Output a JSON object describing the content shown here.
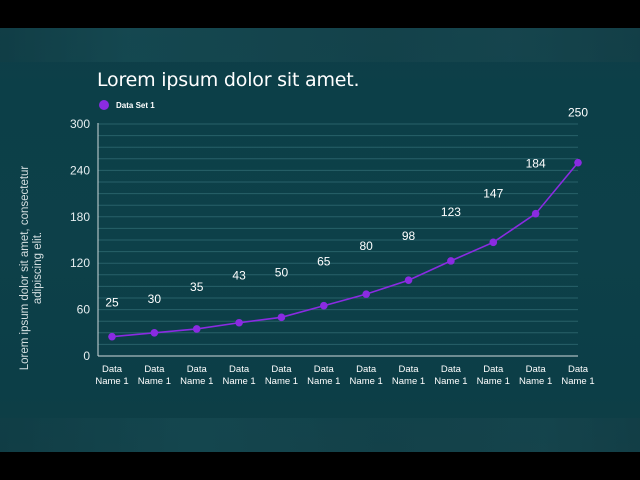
{
  "chart_data": {
    "type": "line",
    "title": "Lorem ipsum dolor sit amet.",
    "ylabel": "Lorem ipsum dolor sit amet, consectetur adipiscing elit.",
    "xlabel": "",
    "ylim": [
      0,
      300
    ],
    "yticks": [
      0,
      60,
      120,
      180,
      240,
      300
    ],
    "grid": true,
    "legend_position": "top-left",
    "categories": [
      "Data Name 1",
      "Data Name 1",
      "Data Name 1",
      "Data Name 1",
      "Data Name 1",
      "Data Name 1",
      "Data Name 1",
      "Data Name 1",
      "Data Name 1",
      "Data Name 1",
      "Data Name 1",
      "Data Name 1"
    ],
    "series": [
      {
        "name": "Data Set 1",
        "color": "#8a2be2",
        "values": [
          25,
          30,
          35,
          43,
          50,
          65,
          80,
          98,
          123,
          147,
          184,
          250
        ]
      }
    ]
  },
  "colors": {
    "background": "#0d4049",
    "grid": "#2f6a72",
    "series": "#8a2be2",
    "text": "#ffffff"
  }
}
